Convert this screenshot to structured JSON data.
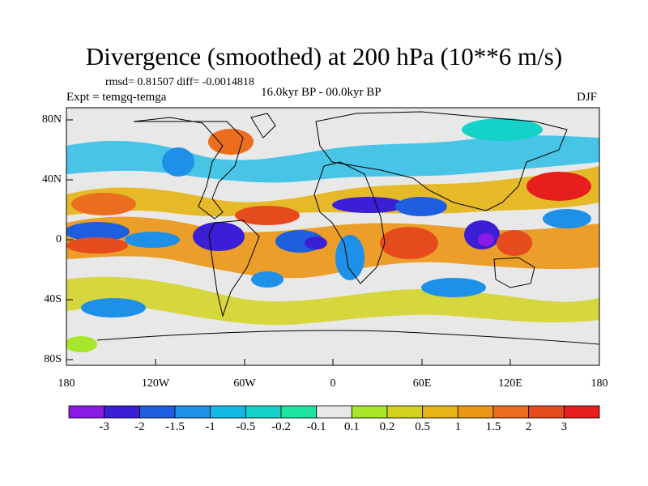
{
  "title": "Divergence (smoothed) at 200 hPa (10**6 m/s)",
  "stats_text": "rmsd= 0.81507 diff= -0.0014818",
  "experiment_text": "Expt = temgq-temga",
  "period_text": "16.0kyr BP - 00.0kyr BP",
  "season": "DJF",
  "map": {
    "lat_labels": [
      "80N",
      "40N",
      "0",
      "40S",
      "80S"
    ],
    "lon_labels": [
      "180",
      "120W",
      "60W",
      "0",
      "60E",
      "120E",
      "180"
    ]
  },
  "colorbar": {
    "colors": [
      "#8a1ae6",
      "#3b1fd6",
      "#1d5fe0",
      "#1e90e8",
      "#12b8e6",
      "#14d2c8",
      "#1ee6a0",
      "#e8e8e8",
      "#a8e62a",
      "#d2d21e",
      "#e6b414",
      "#eb9614",
      "#eb6e1e",
      "#e64b1e",
      "#e61e1e"
    ],
    "labels": [
      "-3",
      "-2",
      "-1.5",
      "-1",
      "-0.5",
      "-0.2",
      "-0.1",
      "0.1",
      "0.2",
      "0.5",
      "1",
      "1.5",
      "2",
      "3"
    ]
  }
}
